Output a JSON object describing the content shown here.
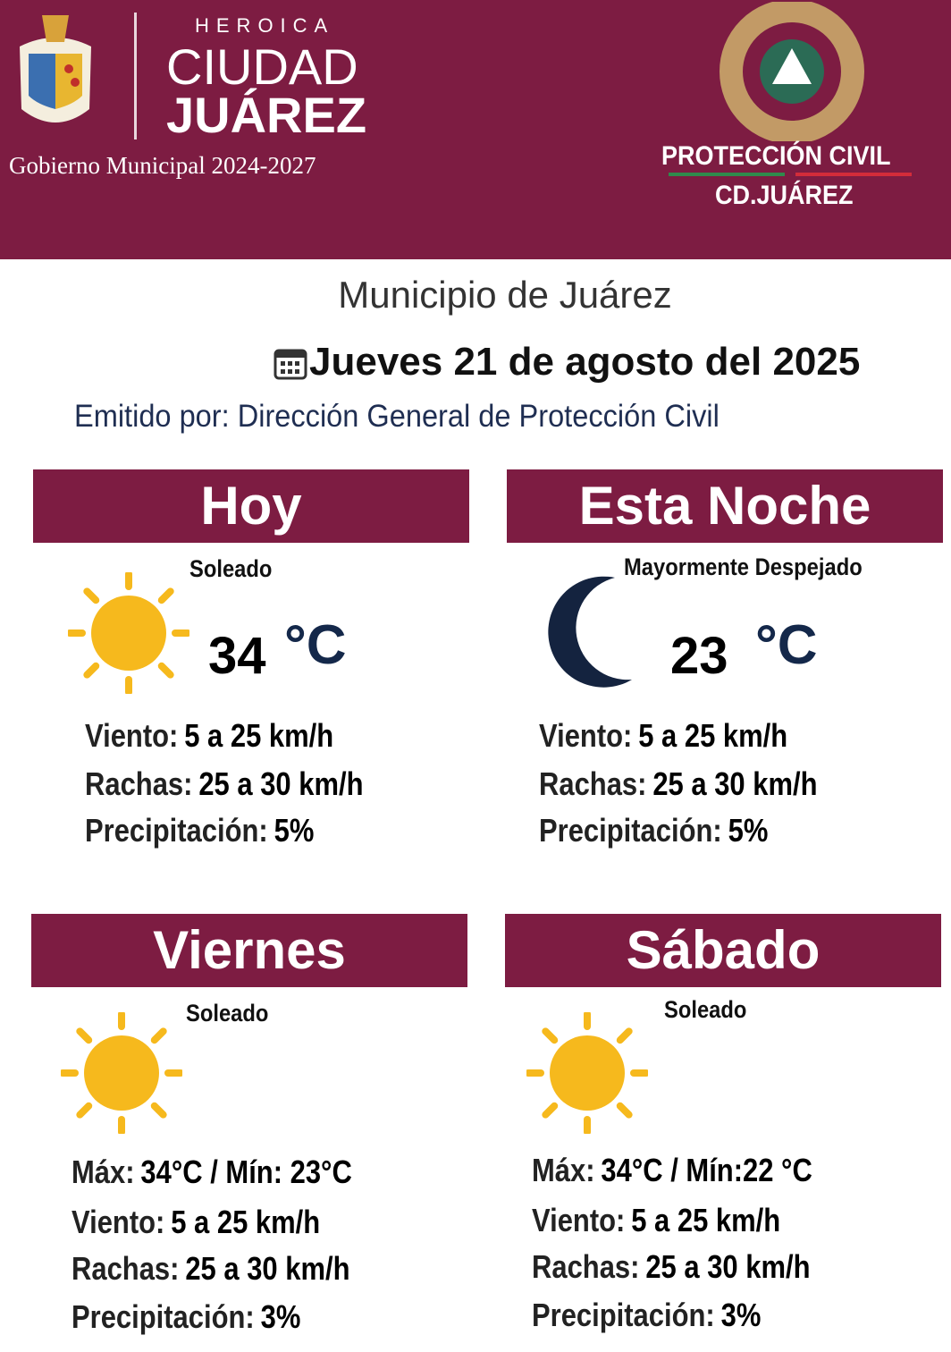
{
  "header": {
    "city_prefix": "HEROICA",
    "city_line1": "CIUDAD",
    "city_line2": "JUÁREZ",
    "government": "Gobierno Municipal 2024-2027",
    "agency_line1": "PROTECCIÓN CIVIL",
    "agency_line2": "CD.JUÁREZ",
    "brand_color": "#7d1c42"
  },
  "title": "Municipio de Juárez",
  "date": "Jueves 21 de agosto del 2025",
  "date_icon": "calendar-icon",
  "issuer": "Emitido por: Dirección General de Protección Civil",
  "forecasts": [
    {
      "name": "Hoy",
      "condition": "Soleado",
      "icon": "sun-icon",
      "temp": "34",
      "unit": "°C",
      "rows": [
        {
          "label": "Viento:",
          "value": "5 a 25 km/h"
        },
        {
          "label": "Rachas:",
          "value": "25 a 30  km/h"
        },
        {
          "label": "Precipitación:",
          "value": "5%"
        }
      ]
    },
    {
      "name": "Esta Noche",
      "condition": "Mayormente Despejado",
      "icon": "moon-icon",
      "temp": "23",
      "unit": "°C",
      "rows": [
        {
          "label": "Viento:",
          "value": "5 a 25 km/h"
        },
        {
          "label": "Rachas:",
          "value": "25 a 30 km/h"
        },
        {
          "label": "Precipitación:",
          "value": "5%"
        }
      ]
    },
    {
      "name": "Viernes",
      "condition": "Soleado",
      "icon": "sun-icon",
      "rows": [
        {
          "label": "Máx:",
          "value": "34°C / Mín:  23°C"
        },
        {
          "label": "Viento:",
          "value": "5 a 25 km/h"
        },
        {
          "label": "Rachas:",
          "value": "25 a 30 km/h"
        },
        {
          "label": "Precipitación:",
          "value": "3%"
        }
      ]
    },
    {
      "name": "Sábado",
      "condition": "Soleado",
      "icon": "sun-icon",
      "rows": [
        {
          "label": "Máx:",
          "value": "34°C / Mín:22 °C"
        },
        {
          "label": "Viento:",
          "value": "5 a 25 km/h"
        },
        {
          "label": "Rachas:",
          "value": "25 a 30 km/h"
        },
        {
          "label": "Precipitación:",
          "value": "3%"
        }
      ]
    }
  ]
}
